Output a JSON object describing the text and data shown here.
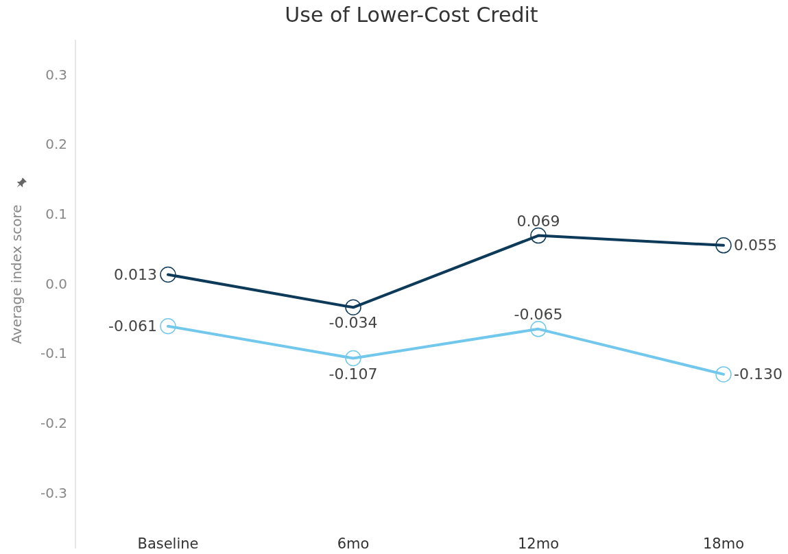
{
  "chart_data": {
    "type": "line",
    "title": "Use of Lower-Cost Credit",
    "ylabel": "Average index score",
    "categories": [
      "Baseline",
      "6mo",
      "12mo",
      "18mo"
    ],
    "series": [
      {
        "color": "#0e3a5a",
        "values": [
          0.013,
          -0.034,
          0.069,
          0.055
        ],
        "value_labels": [
          "0.013",
          "-0.034",
          "0.069",
          "0.055"
        ]
      },
      {
        "color": "#72c7ec",
        "values": [
          -0.061,
          -0.107,
          -0.065,
          -0.13
        ],
        "value_labels": [
          "-0.061",
          "-0.107",
          "-0.065",
          "-0.130"
        ]
      }
    ],
    "ylim": [
      -0.38,
      0.35
    ],
    "yticks": [
      -0.3,
      -0.2,
      -0.1,
      {
        "value": 0,
        "label": "0.0"
      },
      0.1,
      0.2,
      0.3
    ],
    "grid": false,
    "marker": "circle",
    "line_style": "solid"
  }
}
